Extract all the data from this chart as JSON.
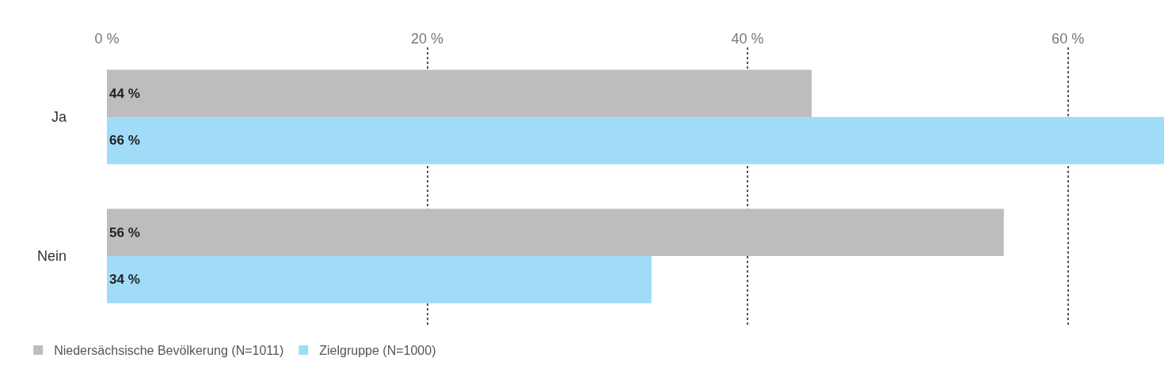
{
  "chart_data": {
    "type": "bar",
    "orientation": "horizontal",
    "categories": [
      "Ja",
      "Nein"
    ],
    "series": [
      {
        "name": "Niedersächsische Bevölkerung (N=1011)",
        "color": "#bdbdbf",
        "values": [
          44,
          56
        ],
        "value_labels": [
          "44 %",
          "56 %"
        ]
      },
      {
        "name": "Zielgruppe (N=1000)",
        "color": "#a0dcf7",
        "values": [
          66,
          34
        ],
        "value_labels": [
          "66 %",
          "34 %"
        ]
      }
    ],
    "xlim": [
      0,
      66
    ],
    "xticks": [
      {
        "value": 0,
        "label": "0 %"
      },
      {
        "value": 20,
        "label": "20 %"
      },
      {
        "value": 40,
        "label": "40 %"
      },
      {
        "value": 60,
        "label": "60 %"
      }
    ],
    "grid": "x",
    "legend": "bottom left"
  }
}
